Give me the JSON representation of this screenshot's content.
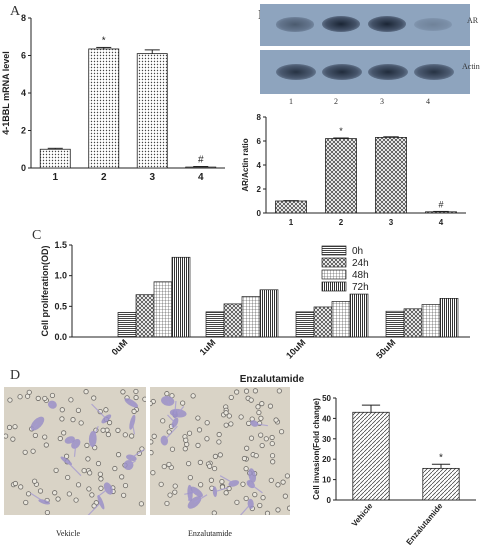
{
  "panels": {
    "a": "A",
    "b": "B",
    "c": "C",
    "d": "D"
  },
  "blot": {
    "labels": [
      "AR",
      "Actin"
    ],
    "lanes": [
      "1",
      "2",
      "3",
      "4"
    ],
    "ar_intensity": [
      0.55,
      0.95,
      0.95,
      0.25
    ],
    "actin_intensity": [
      0.85,
      0.9,
      0.9,
      0.85
    ]
  },
  "micrographs": {
    "left_caption": "Vekicle",
    "right_caption": "Enzalutamide"
  },
  "chart_data": [
    {
      "id": "A",
      "type": "bar",
      "categories": [
        "1",
        "2",
        "3",
        "4"
      ],
      "values": [
        1.0,
        6.35,
        6.1,
        0.05
      ],
      "errors": [
        0.05,
        0.08,
        0.2,
        0.03
      ],
      "annotations": [
        "",
        "*",
        "",
        "#"
      ],
      "ylabel": "4-1BBL mRNA level",
      "ylim": [
        0,
        8
      ],
      "yticks": [
        "0",
        "2",
        "4",
        "6",
        "8"
      ]
    },
    {
      "id": "B",
      "type": "bar",
      "categories": [
        "1",
        "2",
        "3",
        "4"
      ],
      "values": [
        1.0,
        6.2,
        6.3,
        0.1
      ],
      "errors": [
        0.03,
        0.05,
        0.05,
        0.03
      ],
      "annotations": [
        "",
        "*",
        "",
        "#"
      ],
      "ylabel": "AR/Actin ratio",
      "ylim": [
        0,
        8
      ],
      "yticks": [
        "0",
        "2",
        "4",
        "6",
        "8"
      ]
    },
    {
      "id": "C",
      "type": "bar",
      "categories": [
        "0uM",
        "1uM",
        "10uM",
        "50uM"
      ],
      "series": [
        {
          "name": "0h",
          "values": [
            0.4,
            0.41,
            0.41,
            0.42
          ]
        },
        {
          "name": "24h",
          "values": [
            0.69,
            0.54,
            0.49,
            0.46
          ]
        },
        {
          "name": "48h",
          "values": [
            0.9,
            0.66,
            0.58,
            0.53
          ]
        },
        {
          "name": "72h",
          "values": [
            1.3,
            0.77,
            0.7,
            0.63
          ]
        }
      ],
      "ylabel": "Cell proliferation(OD)",
      "xlabel": "Enzalutamide",
      "ylim": [
        0,
        1.5
      ],
      "yticks": [
        "0.0",
        "0.5",
        "1.0",
        "1.5"
      ],
      "legend": "top-right"
    },
    {
      "id": "D",
      "type": "bar",
      "categories": [
        "Vehicle",
        "Enzalutamide"
      ],
      "values": [
        43,
        15.5
      ],
      "errors": [
        3.5,
        2
      ],
      "annotations": [
        "",
        "*"
      ],
      "ylabel": "Cell invasion(Fold change)",
      "ylim": [
        0,
        50
      ],
      "yticks": [
        "0",
        "10",
        "20",
        "30",
        "40",
        "50"
      ]
    }
  ]
}
